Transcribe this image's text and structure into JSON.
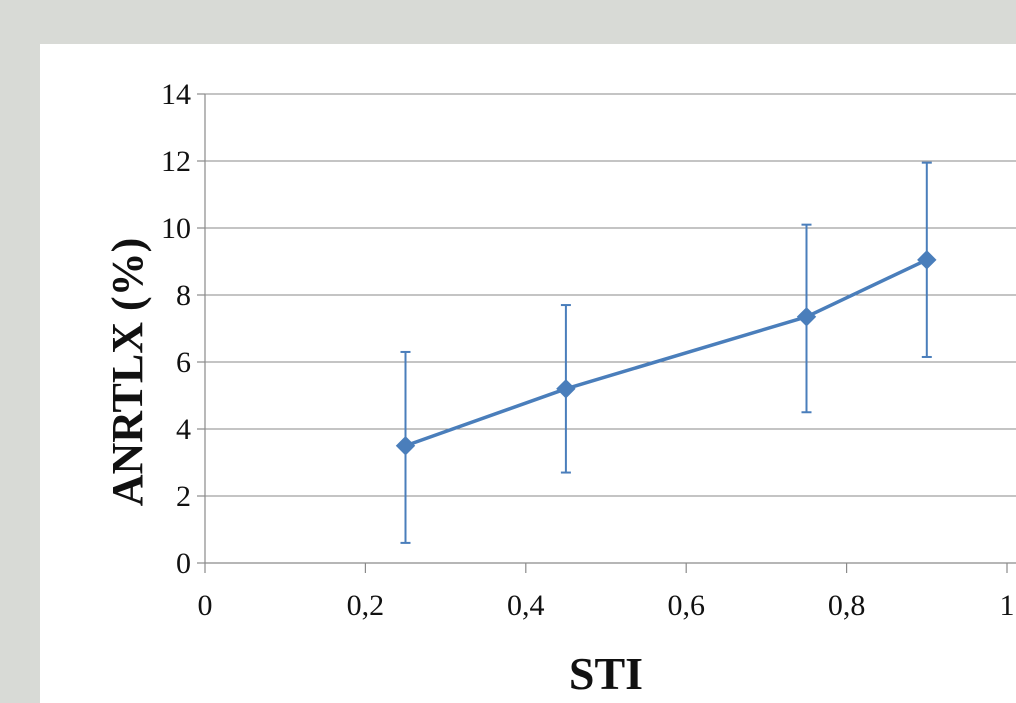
{
  "chart_data": {
    "type": "line",
    "title": "",
    "xlabel": "STI",
    "ylabel": "ANRTLX (%)",
    "xlim": [
      0,
      1
    ],
    "ylim": [
      0,
      14
    ],
    "x_ticks": [
      "0",
      "0,2",
      "0,4",
      "0,6",
      "0,8",
      "1"
    ],
    "x_tick_values": [
      0,
      0.2,
      0.4,
      0.6,
      0.8,
      1
    ],
    "y_ticks": [
      "0",
      "2",
      "4",
      "6",
      "8",
      "10",
      "12",
      "14"
    ],
    "y_tick_values": [
      0,
      2,
      4,
      6,
      8,
      10,
      12,
      14
    ],
    "grid": "horizontal",
    "series": [
      {
        "x": [
          0.25,
          0.45,
          0.75,
          0.9
        ],
        "y": [
          3.5,
          5.2,
          7.35,
          9.05
        ],
        "error_low": [
          0.6,
          2.7,
          4.5,
          6.15
        ],
        "error_high": [
          6.3,
          7.7,
          10.1,
          11.95
        ],
        "color": "#4a7ebb",
        "marker": "diamond"
      }
    ]
  }
}
